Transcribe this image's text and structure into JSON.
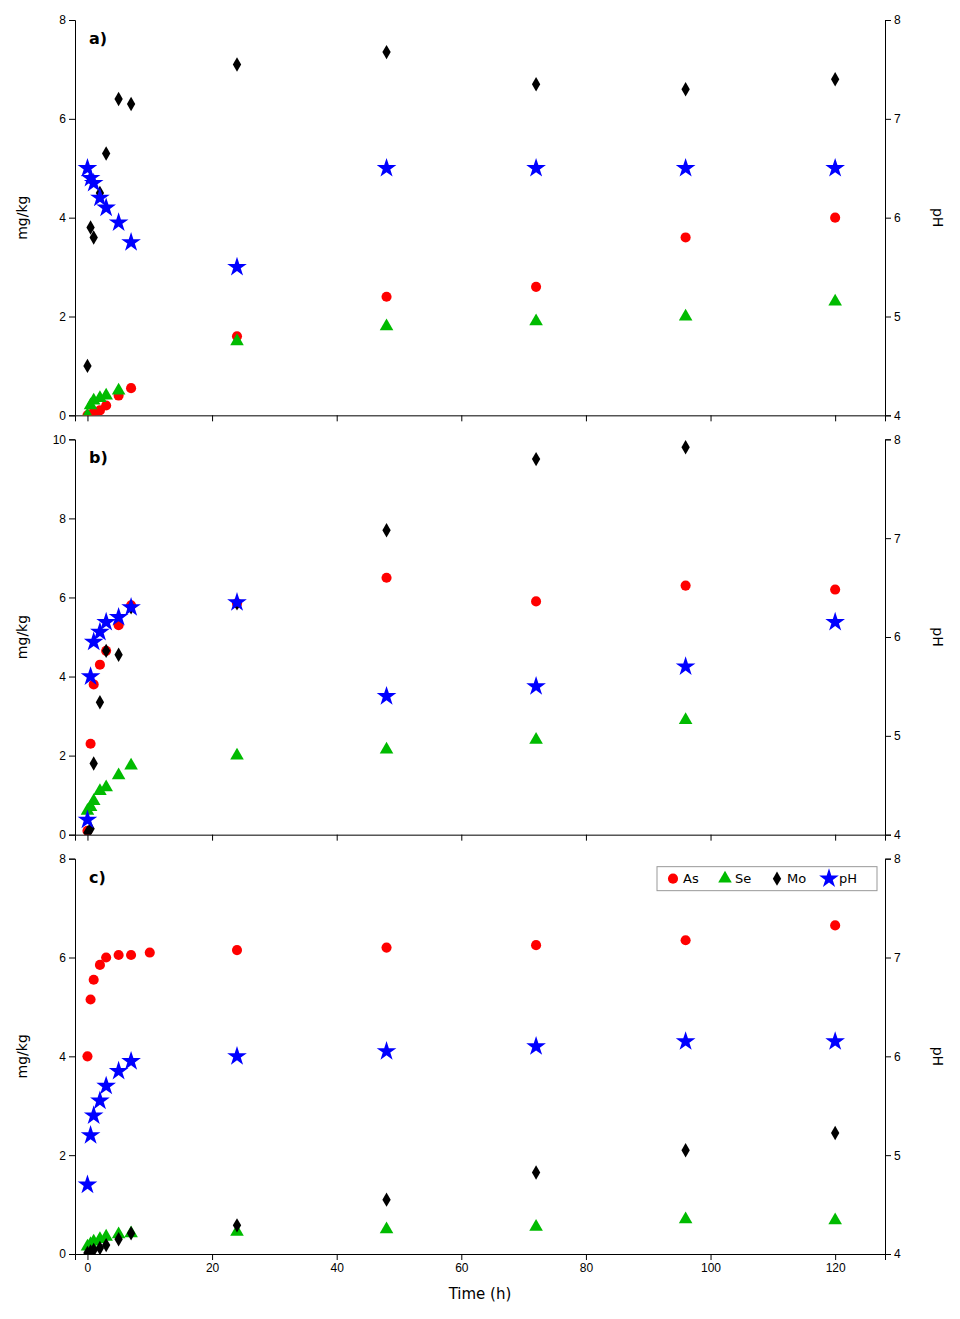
{
  "chart_data": [
    {
      "type": "scatter",
      "title": "a)",
      "ylabel": "mg/kg",
      "y2label": "pH",
      "xlim": [
        -2,
        128
      ],
      "xticks": [
        0,
        20,
        40,
        60,
        80,
        100,
        120
      ],
      "ylim": [
        0,
        8
      ],
      "yticks": [
        0,
        2,
        4,
        6,
        8
      ],
      "y2lim": [
        4,
        8
      ],
      "y2ticks": [
        4,
        5,
        6,
        7,
        8
      ],
      "tick_labels": "y",
      "series": [
        {
          "name": "As",
          "color": "#ff0000",
          "marker": "circle",
          "x": [
            0,
            0.5,
            1,
            2,
            3,
            5,
            7,
            24,
            48,
            72,
            96,
            120
          ],
          "values": [
            0,
            0.02,
            0.05,
            0.1,
            0.2,
            0.4,
            0.55,
            1.6,
            2.4,
            2.6,
            3.6,
            4.0
          ]
        },
        {
          "name": "Se",
          "color": "#00bb00",
          "marker": "triangle",
          "x": [
            0,
            0.5,
            1,
            2,
            3,
            5,
            24,
            48,
            72,
            96,
            120
          ],
          "values": [
            0,
            0.2,
            0.3,
            0.35,
            0.4,
            0.5,
            1.5,
            1.8,
            1.9,
            2.0,
            2.3
          ]
        },
        {
          "name": "Mo",
          "color": "#000000",
          "marker": "diamond",
          "x": [
            0,
            0.5,
            1,
            2,
            3,
            5,
            7,
            24,
            48,
            72,
            96,
            120
          ],
          "values": [
            1.0,
            3.8,
            3.6,
            4.5,
            5.3,
            6.4,
            6.3,
            7.1,
            7.35,
            6.7,
            6.6,
            6.8
          ]
        },
        {
          "name": "pH",
          "color": "#0000ff",
          "marker": "star",
          "axis": "y2",
          "x": [
            0,
            0.5,
            1,
            2,
            3,
            5,
            7,
            24,
            48,
            72,
            96,
            120
          ],
          "values": [
            6.5,
            6.4,
            6.35,
            6.2,
            6.1,
            5.95,
            5.75,
            5.5,
            6.5,
            6.5,
            6.5,
            6.5
          ]
        }
      ]
    },
    {
      "type": "scatter",
      "title": "b)",
      "ylabel": "mg/kg",
      "y2label": "pH",
      "xlim": [
        -2,
        128
      ],
      "xticks": [
        0,
        20,
        40,
        60,
        80,
        100,
        120
      ],
      "ylim": [
        0,
        10
      ],
      "yticks": [
        0,
        2,
        4,
        6,
        8,
        10
      ],
      "y2lim": [
        4,
        8
      ],
      "y2ticks": [
        4,
        5,
        6,
        7,
        8
      ],
      "tick_labels": "y",
      "series": [
        {
          "name": "As",
          "color": "#ff0000",
          "marker": "circle",
          "x": [
            0,
            0.5,
            1,
            2,
            3,
            5,
            7,
            24,
            48,
            72,
            96,
            120
          ],
          "values": [
            0.1,
            2.3,
            3.8,
            4.3,
            4.65,
            5.3,
            5.8,
            5.85,
            6.5,
            5.9,
            6.3,
            6.2
          ]
        },
        {
          "name": "Se",
          "color": "#00bb00",
          "marker": "triangle",
          "x": [
            0,
            0.5,
            1,
            2,
            3,
            5,
            7,
            24,
            48,
            72,
            96
          ],
          "values": [
            0.6,
            0.7,
            0.85,
            1.1,
            1.2,
            1.5,
            1.75,
            2.0,
            2.15,
            2.4,
            2.9
          ]
        },
        {
          "name": "Mo",
          "color": "#000000",
          "marker": "diamond",
          "x": [
            0,
            0.5,
            1,
            2,
            3,
            5,
            7,
            24,
            48,
            72,
            96
          ],
          "values": [
            0.05,
            0.15,
            1.8,
            3.35,
            4.65,
            4.55,
            5.75,
            5.85,
            7.7,
            9.5,
            9.8
          ]
        },
        {
          "name": "pH",
          "color": "#0000ff",
          "marker": "star",
          "axis": "y2",
          "x": [
            0,
            0.5,
            1,
            2,
            3,
            5,
            7,
            24,
            48,
            72,
            96,
            120
          ],
          "values": [
            4.15,
            5.6,
            5.95,
            6.05,
            6.15,
            6.2,
            6.3,
            6.35,
            5.4,
            5.5,
            5.7,
            6.15
          ]
        }
      ]
    },
    {
      "type": "scatter",
      "title": "c)",
      "xlabel": "Time (h)",
      "ylabel": "mg/kg",
      "y2label": "pH",
      "xlim": [
        -2,
        128
      ],
      "xticks": [
        0,
        20,
        40,
        60,
        80,
        100,
        120
      ],
      "ylim": [
        0,
        8
      ],
      "yticks": [
        0,
        2,
        4,
        6,
        8
      ],
      "y2lim": [
        4,
        8
      ],
      "y2ticks": [
        4,
        5,
        6,
        7,
        8
      ],
      "legend": "upper right",
      "series": [
        {
          "name": "As",
          "color": "#ff0000",
          "marker": "circle",
          "x": [
            0,
            0.5,
            1,
            2,
            3,
            5,
            7,
            10,
            24,
            48,
            72,
            96,
            120
          ],
          "values": [
            4.0,
            5.15,
            5.55,
            5.85,
            6.0,
            6.05,
            6.05,
            6.1,
            6.15,
            6.2,
            6.25,
            6.35,
            6.65
          ]
        },
        {
          "name": "Se",
          "color": "#00bb00",
          "marker": "triangle",
          "x": [
            0,
            0.5,
            1,
            2,
            3,
            5,
            7,
            24,
            48,
            72,
            96,
            120
          ],
          "values": [
            0.15,
            0.2,
            0.25,
            0.3,
            0.35,
            0.4,
            0.42,
            0.45,
            0.5,
            0.55,
            0.7,
            0.68
          ]
        },
        {
          "name": "Mo",
          "color": "#000000",
          "marker": "diamond",
          "x": [
            0,
            0.5,
            1,
            2,
            3,
            5,
            7,
            24,
            48,
            72,
            96,
            120
          ],
          "values": [
            0.02,
            0.05,
            0.08,
            0.12,
            0.18,
            0.3,
            0.42,
            0.58,
            1.1,
            1.65,
            2.1,
            2.45
          ]
        },
        {
          "name": "pH",
          "color": "#0000ff",
          "marker": "star",
          "axis": "y2",
          "x": [
            0,
            0.5,
            1,
            2,
            3,
            5,
            7,
            24,
            48,
            72,
            96,
            120
          ],
          "values": [
            4.7,
            5.2,
            5.4,
            5.55,
            5.7,
            5.85,
            5.95,
            6.0,
            6.05,
            6.1,
            6.15,
            6.15
          ]
        }
      ]
    }
  ]
}
